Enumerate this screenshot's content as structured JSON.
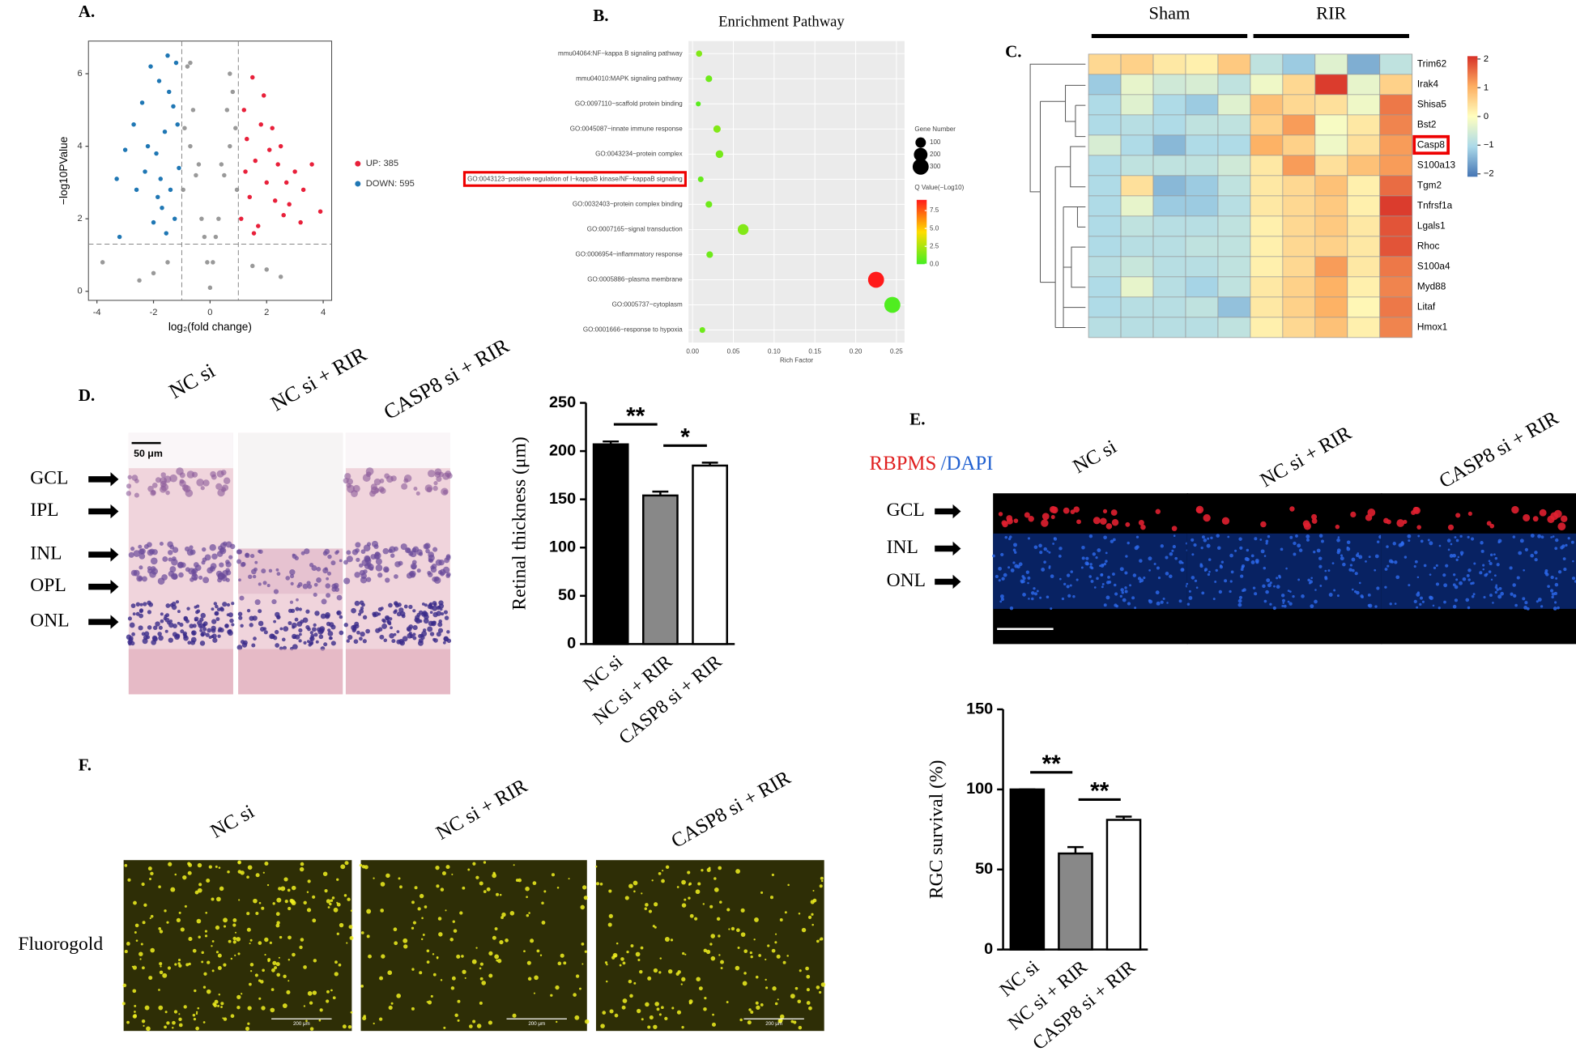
{
  "chart_data": [
    {
      "type": "scatter",
      "xlabel": "log₂(fold change)",
      "ylabel": "−log10PValue",
      "xlim": [
        -4.3,
        4.3
      ],
      "ylim": [
        -0.25,
        6.9
      ],
      "xticks": [
        -4,
        -2,
        0,
        2,
        4
      ],
      "yticks": [
        0,
        2,
        4,
        6
      ],
      "thresholds": {
        "x": [
          -1,
          1
        ],
        "y": 1.3
      },
      "legend": "right",
      "series": [
        {
          "color": "#999999",
          "x": [
            -0.9,
            -0.7,
            -0.5,
            -0.3,
            -0.1,
            0.1,
            0.3,
            0.5,
            0.7,
            0.9,
            -0.8,
            -0.6,
            -0.4,
            -0.2,
            0,
            0.2,
            0.4,
            0.6,
            0.8,
            -0.95,
            0.95,
            -1.5,
            1.5,
            -2,
            2,
            -2.5,
            2.5,
            -0.7,
            0.7,
            -3.8
          ],
          "values": [
            4.5,
            4,
            3.2,
            2,
            0.8,
            0.8,
            2,
            3.2,
            4,
            4.5,
            6.2,
            5,
            3.5,
            1.5,
            0.1,
            1.5,
            3.5,
            5,
            5.5,
            2.8,
            2.8,
            0.8,
            0.7,
            0.5,
            0.6,
            0.3,
            0.4,
            6.3,
            6,
            0.8
          ]
        },
        {
          "name": "UP: 385",
          "color": "#e8203a",
          "x": [
            1.2,
            1.5,
            1.8,
            2.1,
            2.4,
            2.7,
            3,
            3.3,
            3.6,
            3.9,
            1.3,
            1.6,
            2,
            2.3,
            2.6,
            1.1,
            1.4,
            1.7,
            2.2,
            2.8,
            1.9,
            3.2,
            1.25,
            1.55,
            2.5
          ],
          "values": [
            5,
            5.9,
            4.6,
            3.9,
            3.5,
            3,
            3.3,
            2.8,
            3.5,
            2.2,
            4.2,
            3.6,
            3,
            2.5,
            2.1,
            2,
            2.6,
            1.8,
            4.5,
            2.4,
            5.4,
            1.9,
            3.3,
            1.6,
            4
          ]
        },
        {
          "name": "DOWN: 595",
          "color": "#1f77b4",
          "x": [
            -1.2,
            -1.5,
            -1.8,
            -2.1,
            -2.4,
            -2.7,
            -3,
            -3.3,
            -1.3,
            -1.6,
            -1.9,
            -2.2,
            -1.1,
            -1.4,
            -1.7,
            -2,
            -2.6,
            -1.25,
            -1.55,
            -1.85,
            -3.2,
            -2.3,
            -1.15,
            -1.45,
            -1.75
          ],
          "values": [
            6.3,
            6.5,
            5.8,
            6.2,
            5.2,
            4.6,
            3.9,
            3.1,
            5.1,
            4.4,
            3.8,
            4,
            3.4,
            2.8,
            2.3,
            1.9,
            2.8,
            2,
            1.6,
            2.6,
            1.5,
            3.3,
            4.6,
            5.5,
            3.1
          ]
        }
      ]
    },
    {
      "type": "bubble",
      "title": "Enrichment Pathway",
      "xlabel": "Rich Factor",
      "categories": [
        "mmu04064:NF−kappa B signaling pathway",
        "mmu04010:MAPK signaling pathway",
        "GO:0097110~scaffold protein binding",
        "GO:0045087~innate immune response",
        "GO:0043234~protein complex",
        "GO:0043123~positive regulation of I−kappaB kinase/NF−kappaB signaling",
        "GO:0032403~protein complex binding",
        "GO:0007165~signal transduction",
        "GO:0006954~inflammatory response",
        "GO:0005886~plasma membrane",
        "GO:0005737~cytoplasm",
        "GO:0001666~response to hypoxia"
      ],
      "values": [
        0.008,
        0.02,
        0.007,
        0.03,
        0.033,
        0.01,
        0.02,
        0.062,
        0.021,
        0.225,
        0.245,
        0.012
      ],
      "sizes": [
        20,
        25,
        8,
        35,
        40,
        15,
        25,
        110,
        25,
        300,
        300,
        15
      ],
      "q_values": [
        1.5,
        1,
        0.5,
        1.5,
        1.2,
        0.8,
        1,
        1.5,
        1,
        9,
        0.3,
        1
      ],
      "xlim": [
        -0.005,
        0.26
      ],
      "xticks": [
        {
          "value": 0,
          "label": "0.00"
        },
        {
          "value": 0.05,
          "label": "0.05"
        },
        {
          "value": 0.1,
          "label": "0.10"
        },
        {
          "value": 0.15,
          "label": "0.15"
        },
        {
          "value": 0.2,
          "label": "0.20"
        },
        {
          "value": 0.25,
          "label": "0.25"
        }
      ],
      "grid": true,
      "highlight": 5,
      "size_legend": {
        "title": "Gene Number",
        "values": [
          100,
          200,
          300
        ]
      },
      "color_legend": {
        "title": "Q Value(−Log10)",
        "range": [
          0,
          9
        ],
        "colors": [
          "#44ee22",
          "#ffdd00",
          "#ff1a1a"
        ],
        "ticks": [
          7.5,
          {
            "value": 5,
            "label": "5.0"
          },
          2.5,
          {
            "value": 0,
            "label": "0.0"
          }
        ]
      }
    },
    {
      "type": "heatmap",
      "groups": [
        "Sham",
        "RIR"
      ],
      "rows": [
        "Trim62",
        "Irak4",
        "Shisa5",
        "Bst2",
        "Casp8",
        "S100a13",
        "Tgm2",
        "Tnfrsf1a",
        "Lgals1",
        "Rhoc",
        "S100a4",
        "Myd88",
        "Litaf",
        "Hmox1"
      ],
      "values": [
        [
          0.5,
          0.6,
          0.3,
          0.2,
          0.7,
          -0.8,
          -1.2,
          -0.4,
          -1.5,
          -0.8
        ],
        [
          -1.2,
          -0.3,
          -0.6,
          -0.5,
          -0.8,
          -0.2,
          0.5,
          2,
          -0.3,
          0.6
        ],
        [
          -1,
          -0.4,
          -1,
          -1.2,
          -0.4,
          0.8,
          0.5,
          0.4,
          -0.2,
          1.5
        ],
        [
          -1,
          -0.9,
          -1,
          -0.8,
          -0.8,
          0.6,
          1.2,
          -0.1,
          0.3,
          1.4
        ],
        [
          -0.5,
          -1,
          -1.4,
          -1,
          -1,
          1,
          0.6,
          -0.2,
          0.4,
          1.2
        ],
        [
          -1,
          -0.8,
          -0.8,
          -0.8,
          -0.6,
          0.3,
          1.2,
          0.4,
          0.8,
          1.2
        ],
        [
          -1,
          0.4,
          -1.4,
          -1.2,
          -0.8,
          0.3,
          0.5,
          0.8,
          0.2,
          1.6
        ],
        [
          -1,
          -0.3,
          -1.2,
          -1.2,
          -0.9,
          0.3,
          0.5,
          0.7,
          0.2,
          2
        ],
        [
          -1,
          -0.8,
          -0.9,
          -0.9,
          -0.8,
          0.2,
          0.5,
          0.7,
          0.3,
          1.8
        ],
        [
          -1,
          -0.9,
          -0.9,
          -0.8,
          -0.8,
          0.2,
          0.5,
          0.6,
          0.3,
          1.8
        ],
        [
          -0.9,
          -0.7,
          -0.9,
          -0.9,
          -0.8,
          0.2,
          0.5,
          1.2,
          0.3,
          1.5
        ],
        [
          -1,
          -0.3,
          -0.9,
          -1.1,
          -0.8,
          0.3,
          0.6,
          1,
          0.2,
          1.4
        ],
        [
          -1,
          -0.9,
          -0.9,
          -0.8,
          -1.3,
          0.3,
          0.6,
          1,
          0.1,
          1.5
        ],
        [
          -0.9,
          -0.9,
          -0.9,
          -0.9,
          -0.8,
          0.2,
          0.5,
          0.8,
          0.2,
          1.4
        ]
      ],
      "zlim": [
        -2.1,
        2.1
      ],
      "colors": [
        "#4575b4",
        "#abd9e9",
        "#ffffbf",
        "#fdae61",
        "#d73027"
      ],
      "zticks": [
        2,
        1,
        0,
        {
          "value": -1,
          "label": "−1"
        },
        {
          "value": -2,
          "label": "−2"
        }
      ],
      "highlight": 4
    },
    {
      "type": "bar",
      "categories": [
        "NC si",
        "NC si + RIR",
        "CASP8 si + RIR"
      ],
      "values": [
        207,
        154,
        185
      ],
      "errors": [
        3,
        4,
        3
      ],
      "colors": [
        "#000000",
        "#888888",
        "#ffffff"
      ],
      "ylabel": "Retinal thickness (μm)",
      "ylim": [
        0,
        250
      ],
      "yticks": [
        0,
        50,
        100,
        150,
        200,
        250
      ],
      "significance": [
        {
          "label": "**",
          "between": [
            0,
            1
          ]
        },
        {
          "label": "*",
          "between": [
            1,
            2
          ]
        }
      ]
    },
    {
      "type": "bar",
      "categories": [
        "NC si",
        "NC si + RIR",
        "CASP8 si + RIR"
      ],
      "values": [
        100,
        60,
        81
      ],
      "errors": [
        0,
        4,
        2
      ],
      "colors": [
        "#000000",
        "#888888",
        "#ffffff"
      ],
      "ylabel": "RGC survival (%)",
      "ylim": [
        0,
        150
      ],
      "yticks": [
        0,
        50,
        100,
        150
      ],
      "significance": [
        {
          "label": "**",
          "between": [
            0,
            1
          ]
        },
        {
          "label": "**",
          "between": [
            1,
            2
          ]
        }
      ]
    }
  ],
  "figure": {
    "panel_labels": [
      "A.",
      "B.",
      "C.",
      "D.",
      "E.",
      "F."
    ],
    "histology": {
      "columns": [
        "NC si",
        "NC si + RIR",
        "CASP8 si + RIR"
      ],
      "layers": [
        "GCL",
        "IPL",
        "INL",
        "OPL",
        "ONL"
      ],
      "scale": "50 μm"
    },
    "fluorescence": {
      "stain": [
        "RBPMS",
        "/DAPI"
      ],
      "columns": [
        "NC si",
        "NC si + RIR",
        "CASP8 si + RIR"
      ],
      "layers": [
        "GCL",
        "INL",
        "ONL"
      ]
    },
    "fluorogold": {
      "columns": [
        "NC si",
        "NC si + RIR",
        "CASP8 si + RIR"
      ],
      "row": "Fluorogold",
      "scale": "200 μm"
    }
  }
}
